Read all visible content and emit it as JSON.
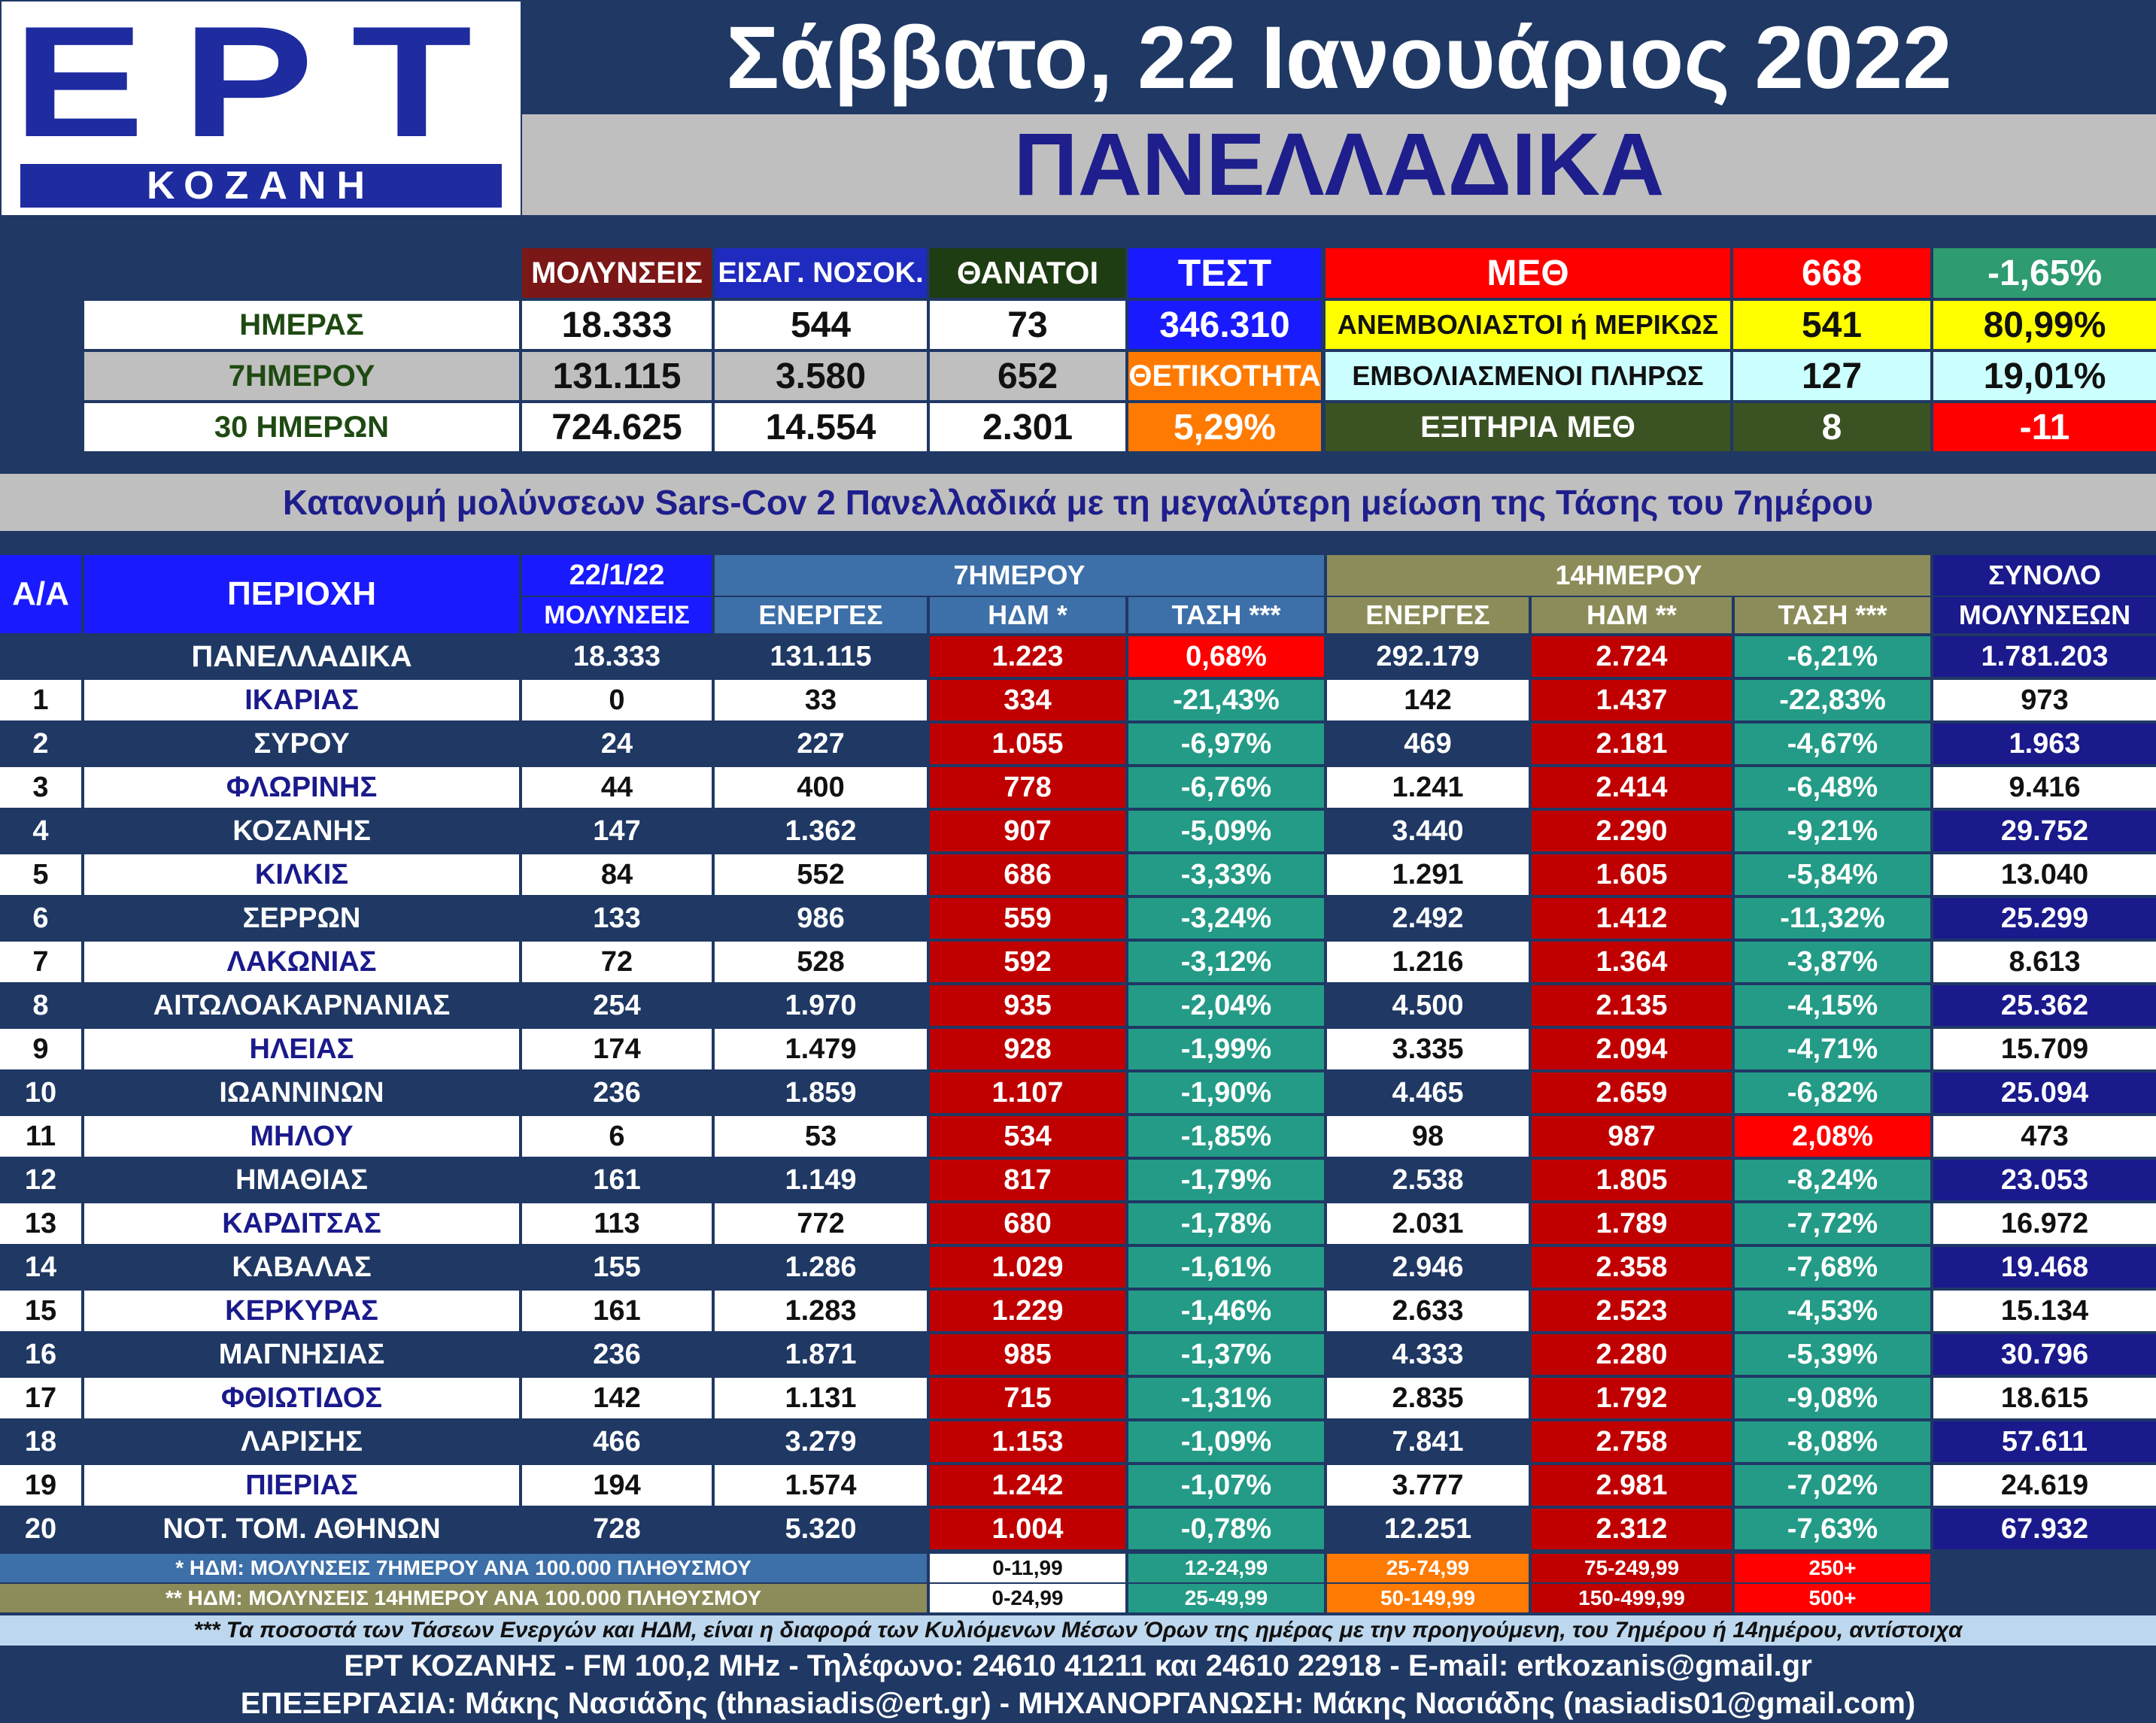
{
  "header": {
    "logo_text": "ΕΡΤ",
    "logo_sub": "ΚΟΖΑΝΗ",
    "date": "Σάββατο, 22 Ιανουάριος 2022",
    "region": "ΠΑΝΕΛΛΑΔΙΚΑ"
  },
  "summary": {
    "col_headers": [
      "ΜΟΛΥΝΣΕΙΣ",
      "ΕΙΣΑΓ. ΝΟΣΟΚ.",
      "ΘΑΝΑΤΟΙ"
    ],
    "test_label": "ΤΕΣΤ",
    "rows": [
      {
        "label": "ΗΜΕΡΑΣ",
        "values": [
          "18.333",
          "544",
          "73"
        ]
      },
      {
        "label": "7ΗΜΕΡΟΥ",
        "values": [
          "131.115",
          "3.580",
          "652"
        ]
      },
      {
        "label": "30 ΗΜΕΡΩΝ",
        "values": [
          "724.625",
          "14.554",
          "2.301"
        ]
      }
    ],
    "test_value": "346.310",
    "positivity_label": "ΘΕΤΙΚΟΤΗΤΑ",
    "positivity_value": "5,29%",
    "icu": {
      "label": "ΜΕΘ",
      "value": "668",
      "pct": "-1,65%",
      "unvax_label": "ΑΝΕΜΒΟΛΙΑΣΤΟΙ ή ΜΕΡΙΚΩΣ",
      "unvax_value": "541",
      "unvax_pct": "80,99%",
      "vax_label": "ΕΜΒΟΛΙΑΣΜΕΝΟΙ ΠΛΗΡΩΣ",
      "vax_value": "127",
      "vax_pct": "19,01%",
      "discharged_label": "ΕΞΙΤΗΡΙΑ ΜΕΘ",
      "discharged_value": "8",
      "discharged_diff": "-11"
    }
  },
  "subtitle": "Κατανομή μολύνσεων Sars-Cov 2 Πανελλαδικά με τη μεγαλύτερη μείωση της Τάσης του 7ημέρου",
  "table": {
    "h_aa": "Α/Α",
    "h_region": "ΠΕΡΙΟΧΗ",
    "h_date": "22/1/22",
    "h_infections": "ΜΟΛΥΝΣΕΙΣ",
    "h_7day": "7ΗΜΕΡΟΥ",
    "h_14day": "14ΗΜΕΡΟΥ",
    "h_total1": "ΣΥΝΟΛΟ",
    "h_total2": "ΜΟΛΥΝΣΕΩΝ",
    "h_active": "ΕΝΕΡΓΕΣ",
    "h_hdm7": "ΗΔΜ *",
    "h_trend7": "ΤΑΣΗ ***",
    "h_active14": "ΕΝΕΡΓΕΣ",
    "h_hdm14": "ΗΔΜ **",
    "h_trend14": "ΤΑΣΗ ***",
    "national": {
      "name": "ΠΑΝΕΛΛΑΔΙΚΑ",
      "inf": "18.333",
      "a7": "131.115",
      "h7": "1.223",
      "t7": "0,68%",
      "a14": "292.179",
      "h14": "2.724",
      "t14": "-6,21%",
      "total": "1.781.203"
    },
    "rows": [
      {
        "n": "1",
        "name": "ΙΚΑΡΙΑΣ",
        "inf": "0",
        "a7": "33",
        "h7": "334",
        "t7": "-21,43%",
        "a14": "142",
        "h14": "1.437",
        "t14": "-22,83%",
        "total": "973"
      },
      {
        "n": "2",
        "name": "ΣΥΡΟΥ",
        "inf": "24",
        "a7": "227",
        "h7": "1.055",
        "t7": "-6,97%",
        "a14": "469",
        "h14": "2.181",
        "t14": "-4,67%",
        "total": "1.963"
      },
      {
        "n": "3",
        "name": "ΦΛΩΡΙΝΗΣ",
        "inf": "44",
        "a7": "400",
        "h7": "778",
        "t7": "-6,76%",
        "a14": "1.241",
        "h14": "2.414",
        "t14": "-6,48%",
        "total": "9.416"
      },
      {
        "n": "4",
        "name": "ΚΟΖΑΝΗΣ",
        "inf": "147",
        "a7": "1.362",
        "h7": "907",
        "t7": "-5,09%",
        "a14": "3.440",
        "h14": "2.290",
        "t14": "-9,21%",
        "total": "29.752"
      },
      {
        "n": "5",
        "name": "ΚΙΛΚΙΣ",
        "inf": "84",
        "a7": "552",
        "h7": "686",
        "t7": "-3,33%",
        "a14": "1.291",
        "h14": "1.605",
        "t14": "-5,84%",
        "total": "13.040"
      },
      {
        "n": "6",
        "name": "ΣΕΡΡΩΝ",
        "inf": "133",
        "a7": "986",
        "h7": "559",
        "t7": "-3,24%",
        "a14": "2.492",
        "h14": "1.412",
        "t14": "-11,32%",
        "total": "25.299"
      },
      {
        "n": "7",
        "name": "ΛΑΚΩΝΙΑΣ",
        "inf": "72",
        "a7": "528",
        "h7": "592",
        "t7": "-3,12%",
        "a14": "1.216",
        "h14": "1.364",
        "t14": "-3,87%",
        "total": "8.613"
      },
      {
        "n": "8",
        "name": "ΑΙΤΩΛΟΑΚΑΡΝΑΝΙΑΣ",
        "inf": "254",
        "a7": "1.970",
        "h7": "935",
        "t7": "-2,04%",
        "a14": "4.500",
        "h14": "2.135",
        "t14": "-4,15%",
        "total": "25.362"
      },
      {
        "n": "9",
        "name": "ΗΛΕΙΑΣ",
        "inf": "174",
        "a7": "1.479",
        "h7": "928",
        "t7": "-1,99%",
        "a14": "3.335",
        "h14": "2.094",
        "t14": "-4,71%",
        "total": "15.709"
      },
      {
        "n": "10",
        "name": "ΙΩΑΝΝΙΝΩΝ",
        "inf": "236",
        "a7": "1.859",
        "h7": "1.107",
        "t7": "-1,90%",
        "a14": "4.465",
        "h14": "2.659",
        "t14": "-6,82%",
        "total": "25.094"
      },
      {
        "n": "11",
        "name": "ΜΗΛΟΥ",
        "inf": "6",
        "a7": "53",
        "h7": "534",
        "t7": "-1,85%",
        "a14": "98",
        "h14": "987",
        "t14": "2,08%",
        "total": "473",
        "t14_up": true
      },
      {
        "n": "12",
        "name": "ΗΜΑΘΙΑΣ",
        "inf": "161",
        "a7": "1.149",
        "h7": "817",
        "t7": "-1,79%",
        "a14": "2.538",
        "h14": "1.805",
        "t14": "-8,24%",
        "total": "23.053"
      },
      {
        "n": "13",
        "name": "ΚΑΡΔΙΤΣΑΣ",
        "inf": "113",
        "a7": "772",
        "h7": "680",
        "t7": "-1,78%",
        "a14": "2.031",
        "h14": "1.789",
        "t14": "-7,72%",
        "total": "16.972"
      },
      {
        "n": "14",
        "name": "ΚΑΒΑΛΑΣ",
        "inf": "155",
        "a7": "1.286",
        "h7": "1.029",
        "t7": "-1,61%",
        "a14": "2.946",
        "h14": "2.358",
        "t14": "-7,68%",
        "total": "19.468"
      },
      {
        "n": "15",
        "name": "ΚΕΡΚΥΡΑΣ",
        "inf": "161",
        "a7": "1.283",
        "h7": "1.229",
        "t7": "-1,46%",
        "a14": "2.633",
        "h14": "2.523",
        "t14": "-4,53%",
        "total": "15.134"
      },
      {
        "n": "16",
        "name": "ΜΑΓΝΗΣΙΑΣ",
        "inf": "236",
        "a7": "1.871",
        "h7": "985",
        "t7": "-1,37%",
        "a14": "4.333",
        "h14": "2.280",
        "t14": "-5,39%",
        "total": "30.796"
      },
      {
        "n": "17",
        "name": "ΦΘΙΩΤΙΔΟΣ",
        "inf": "142",
        "a7": "1.131",
        "h7": "715",
        "t7": "-1,31%",
        "a14": "2.835",
        "h14": "1.792",
        "t14": "-9,08%",
        "total": "18.615"
      },
      {
        "n": "18",
        "name": "ΛΑΡΙΣΗΣ",
        "inf": "466",
        "a7": "3.279",
        "h7": "1.153",
        "t7": "-1,09%",
        "a14": "7.841",
        "h14": "2.758",
        "t14": "-8,08%",
        "total": "57.611"
      },
      {
        "n": "19",
        "name": "ΠΙΕΡΙΑΣ",
        "inf": "194",
        "a7": "1.574",
        "h7": "1.242",
        "t7": "-1,07%",
        "a14": "3.777",
        "h14": "2.981",
        "t14": "-7,02%",
        "total": "24.619"
      },
      {
        "n": "20",
        "name": "ΝΟΤ. ΤΟΜ. ΑΘΗΝΩΝ",
        "inf": "728",
        "a7": "5.320",
        "h7": "1.004",
        "t7": "-0,78%",
        "a14": "12.251",
        "h14": "2.312",
        "t14": "-7,63%",
        "total": "67.932"
      }
    ]
  },
  "legend": {
    "row1_label": "* ΗΔΜ: ΜΟΛΥΝΣΕΙΣ 7ΗΜΕΡΟΥ ΑΝΑ 100.000 ΠΛΗΘΥΣΜΟΥ",
    "row1": [
      "0-11,99",
      "12-24,99",
      "25-74,99",
      "75-249,99",
      "250+"
    ],
    "row2_label": "** ΗΔΜ: ΜΟΛΥΝΣΕΙΣ 14ΗΜΕΡΟΥ ΑΝΑ 100.000 ΠΛΗΘΥΣΜΟΥ",
    "row2": [
      "0-24,99",
      "25-49,99",
      "50-149,99",
      "150-499,99",
      "500+"
    ]
  },
  "note": "*** Τα ποσοστά των Τάσεων Ενεργών και ΗΔΜ, είναι η διαφορά των Κυλιόμενων Μέσων Όρων της ημέρας με την προηγούμενη, του 7ημέρου ή 14ημέρου, αντίστοιχα",
  "footer": {
    "line1": "ΕΡΤ ΚΟΖΑΝΗΣ - FM 100,2 MHz - Τηλέφωνο:  24610 41211 και 24610 22918 - E-mail: ertkozanis@gmail.gr",
    "line2": "ΕΠΕΞΕΡΓΑΣΙΑ: Μάκης Νασιάδης (thnasiadis@ert.gr) - ΜΗΧΑΝΟΡΓΑΝΩΣΗ: Μάκης Νασιάδης (nasiadis01@gmail.com)"
  }
}
